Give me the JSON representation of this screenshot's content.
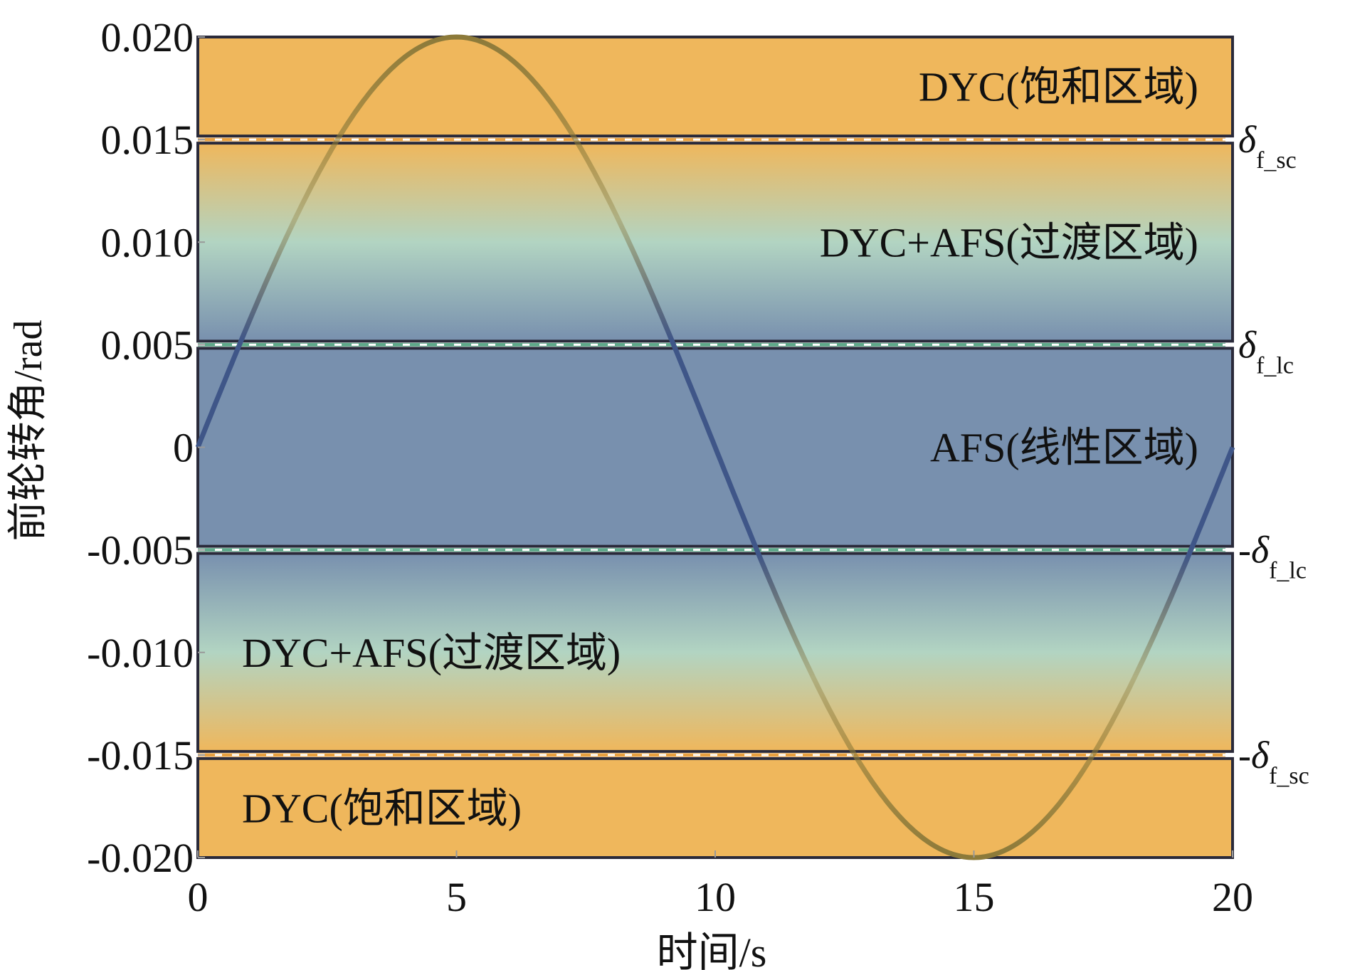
{
  "chart_data": {
    "type": "line",
    "title": "",
    "xlabel": "时间/s",
    "ylabel": "前轮转角/rad",
    "xlim": [
      0,
      20
    ],
    "ylim": [
      -0.02,
      0.02
    ],
    "x_ticks": [
      0,
      5,
      10,
      15,
      20
    ],
    "x_tick_labels": [
      "0",
      "5",
      "10",
      "15",
      "20"
    ],
    "y_ticks": [
      0.02,
      0.015,
      0.01,
      0.005,
      0,
      -0.005,
      -0.01,
      -0.015,
      -0.02
    ],
    "y_tick_labels": [
      "0.020",
      "0.015",
      "0.010",
      "0.005",
      "0",
      "-0.005",
      "-0.010",
      "-0.015",
      "-0.020"
    ],
    "grid": false,
    "series": [
      {
        "name": "前轮转角",
        "function": "0.02*sin(2*pi*t/20)",
        "amplitude": 0.02,
        "period": 20
      }
    ],
    "regions": [
      {
        "label": "DYC(饱和区域)",
        "range": [
          0.015,
          0.02
        ],
        "kind": "saturation",
        "label_align": "right"
      },
      {
        "label": "DYC+AFS(过渡区域)",
        "range": [
          0.005,
          0.015
        ],
        "kind": "transition-upper",
        "label_align": "right"
      },
      {
        "label": "AFS(线性区域)",
        "range": [
          -0.005,
          0.005
        ],
        "kind": "linear",
        "label_align": "right"
      },
      {
        "label": "DYC+AFS(过渡区域)",
        "range": [
          -0.015,
          -0.005
        ],
        "kind": "transition-lower",
        "label_align": "left"
      },
      {
        "label": "DYC(饱和区域)",
        "range": [
          -0.02,
          -0.015
        ],
        "kind": "saturation",
        "label_align": "left"
      }
    ],
    "threshold_lines": [
      {
        "y": 0.015,
        "sign": "",
        "symbol": "δ",
        "sub": "f_sc",
        "color": "#E8A040"
      },
      {
        "y": 0.005,
        "sign": "",
        "symbol": "δ",
        "sub": "f_lc",
        "color": "#5FA88A"
      },
      {
        "y": -0.005,
        "sign": "-",
        "symbol": "δ",
        "sub": "f_lc",
        "color": "#5FA88A"
      },
      {
        "y": -0.015,
        "sign": "-",
        "symbol": "δ",
        "sub": "f_sc",
        "color": "#E8A040"
      }
    ],
    "colors": {
      "orange": "#EFB75C",
      "green": "#B2D4C2",
      "blue": "#7890AE",
      "curve_outer": "#8C7A3A",
      "curve_inner": "#3F5688",
      "frame": "#2A2A3A"
    }
  }
}
